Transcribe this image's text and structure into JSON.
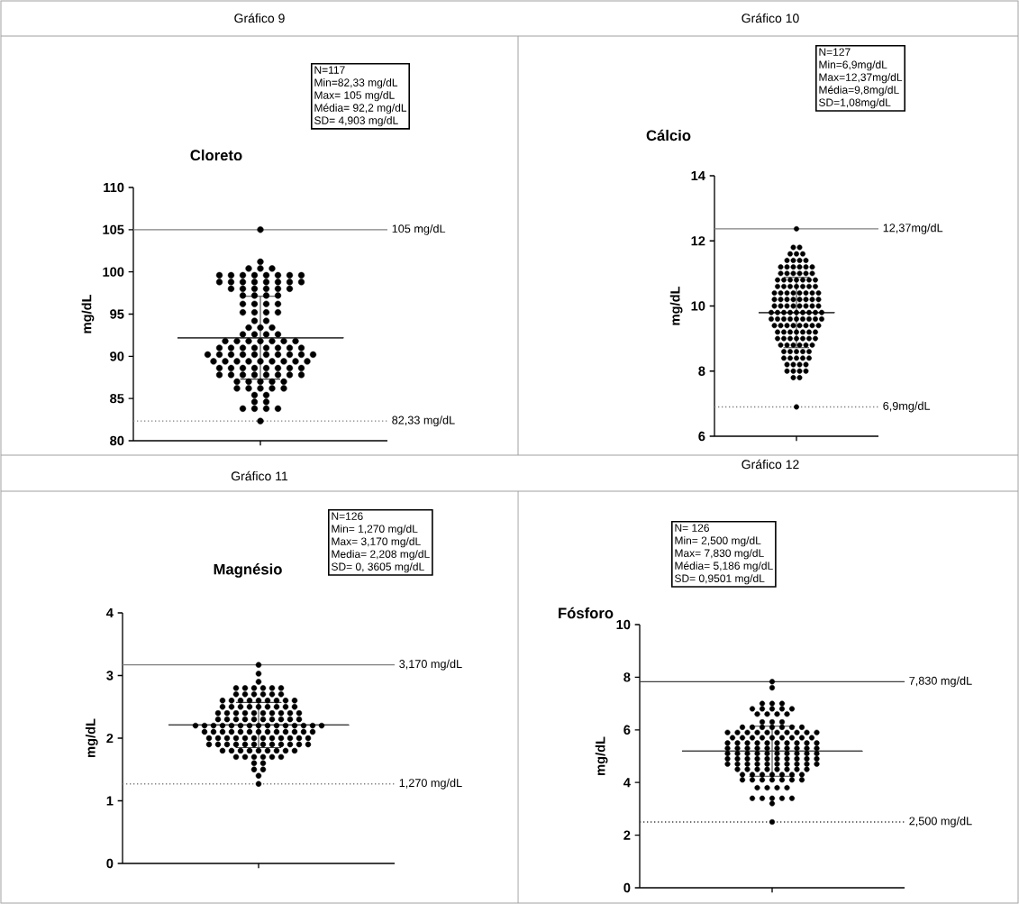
{
  "chart_data": [
    {
      "type": "scatter",
      "title": "Cloreto",
      "ylabel": "mg/dL",
      "categories": [
        null
      ],
      "ylim": [
        80,
        110
      ],
      "yticks": [
        80,
        85,
        90,
        95,
        100,
        105,
        110
      ],
      "tick_labels": "y",
      "marker": "circle",
      "series": [
        {
          "color": "#000000",
          "x": [
            null,
            null,
            null,
            null,
            null,
            null,
            null,
            null,
            null,
            null,
            null,
            null,
            null,
            null,
            null,
            null,
            null,
            null,
            null,
            null,
            null,
            null,
            null,
            null,
            null,
            null,
            null,
            null,
            null,
            null,
            null,
            null,
            null,
            null,
            null,
            null,
            null,
            null,
            null,
            null,
            null,
            null,
            null,
            null,
            null,
            null,
            null,
            null,
            null,
            null,
            null,
            null,
            null,
            null,
            null,
            null,
            null,
            null,
            null,
            null,
            null,
            null,
            null,
            null,
            null,
            null,
            null,
            null,
            null,
            null,
            null,
            null,
            null,
            null,
            null,
            null,
            null,
            null,
            null,
            null,
            null,
            null,
            null,
            null,
            null,
            null,
            null,
            null,
            null,
            null,
            null,
            null,
            null,
            null,
            null,
            null,
            null,
            null,
            null,
            null,
            null,
            null,
            null,
            null,
            null,
            null,
            null,
            null,
            null,
            null,
            null,
            null,
            null,
            null,
            null,
            null,
            null
          ],
          "values": [
            105,
            101.2,
            100.4,
            100.4,
            100.4,
            99.6,
            99.6,
            99.6,
            99.6,
            99.6,
            99.6,
            99.6,
            99.6,
            98.8,
            98.8,
            98.8,
            98.8,
            98.8,
            98.8,
            98.8,
            98.8,
            98,
            98,
            98,
            98,
            98,
            98,
            97.2,
            97.2,
            97.2,
            97.2,
            96.2,
            96.2,
            96.2,
            96.2,
            95.2,
            95.2,
            95.2,
            95.2,
            94.2,
            94.2,
            93.4,
            93.4,
            93.4,
            92.6,
            92.6,
            92.6,
            92.6,
            91.8,
            91.8,
            91.8,
            91.8,
            91.8,
            91.8,
            91.8,
            91,
            91,
            91,
            91,
            91,
            91,
            91,
            91,
            90.2,
            90.2,
            90.2,
            90.2,
            90.2,
            90.2,
            90.2,
            90.2,
            90.2,
            90.2,
            89.4,
            89.4,
            89.4,
            89.4,
            89.4,
            89.4,
            89.4,
            89.4,
            89.4,
            88.6,
            88.6,
            88.6,
            88.6,
            88.6,
            88.6,
            88.6,
            88.6,
            87.8,
            87.8,
            87.8,
            87.8,
            87.8,
            87.8,
            87.8,
            87.8,
            87,
            87,
            87,
            87,
            87,
            86.2,
            86.2,
            86.2,
            86.2,
            86.2,
            85.4,
            85.4,
            84.6,
            84.6,
            83.8,
            83.8,
            83.8,
            83.8,
            82.33
          ]
        },
        {
          "type": "box",
          "color": "#404040",
          "boxes": [
            {
              "low": 87.3,
              "q1": 92.2,
              "median": 92.2,
              "q3": 92.2,
              "high": 97.1
            }
          ]
        }
      ],
      "ref_lines": [
        {
          "axis": "y",
          "value": 105,
          "label": "105 mg/dL",
          "color": "#808080",
          "line_style": "solid"
        },
        {
          "axis": "y",
          "value": 82.33,
          "label": "82,33 mg/dL",
          "color": "#808080",
          "line_style": "dotted"
        }
      ],
      "annotations": [
        "Gráfico 9",
        "N=117",
        "Min=82,33 mg/dL",
        "Max= 105 mg/dL",
        "Média= 92,2 mg/dL",
        "SD= 4,903 mg/dL"
      ]
    },
    {
      "type": "scatter",
      "title": "Cálcio",
      "ylabel": "mg/dL",
      "categories": [
        null
      ],
      "ylim": [
        6,
        14
      ],
      "yticks": [
        6,
        8,
        10,
        12,
        14
      ],
      "tick_labels": "y",
      "marker": "circle",
      "series": [
        {
          "color": "#000000",
          "x": [
            null,
            null,
            null,
            null,
            null,
            null,
            null,
            null,
            null,
            null,
            null,
            null,
            null,
            null,
            null,
            null,
            null,
            null,
            null,
            null,
            null,
            null,
            null,
            null,
            null,
            null,
            null,
            null,
            null,
            null,
            null,
            null,
            null,
            null,
            null,
            null,
            null,
            null,
            null,
            null,
            null,
            null,
            null,
            null,
            null,
            null,
            null,
            null,
            null,
            null,
            null,
            null,
            null,
            null,
            null,
            null,
            null,
            null,
            null,
            null,
            null,
            null,
            null,
            null,
            null,
            null,
            null,
            null,
            null,
            null,
            null,
            null,
            null,
            null,
            null,
            null,
            null,
            null,
            null,
            null,
            null,
            null,
            null,
            null,
            null,
            null,
            null,
            null,
            null,
            null,
            null,
            null,
            null,
            null,
            null,
            null,
            null,
            null,
            null,
            null,
            null,
            null,
            null,
            null,
            null,
            null,
            null,
            null,
            null,
            null,
            null,
            null,
            null,
            null,
            null,
            null,
            null,
            null,
            null,
            null,
            null,
            null,
            null,
            null,
            null,
            null,
            null
          ],
          "values": [
            12.37,
            11.8,
            11.8,
            11.6,
            11.6,
            11.6,
            11.4,
            11.4,
            11.4,
            11.4,
            11.2,
            11.2,
            11.2,
            11.2,
            11.2,
            11.2,
            11,
            11,
            11,
            11,
            11,
            11,
            10.8,
            10.8,
            10.8,
            10.8,
            10.8,
            10.8,
            10.8,
            10.6,
            10.6,
            10.6,
            10.6,
            10.6,
            10.6,
            10.6,
            10.4,
            10.4,
            10.4,
            10.4,
            10.4,
            10.4,
            10.4,
            10.4,
            10.2,
            10.2,
            10.2,
            10.2,
            10.2,
            10.2,
            10.2,
            10.2,
            10,
            10,
            10,
            10,
            10,
            10,
            10,
            10,
            9.8,
            9.8,
            9.8,
            9.8,
            9.8,
            9.8,
            9.8,
            9.8,
            9.8,
            9.6,
            9.6,
            9.6,
            9.6,
            9.6,
            9.6,
            9.6,
            9.6,
            9.6,
            9.4,
            9.4,
            9.4,
            9.4,
            9.4,
            9.4,
            9.4,
            9.4,
            9.2,
            9.2,
            9.2,
            9.2,
            9.2,
            9.2,
            9.2,
            9,
            9,
            9,
            9,
            9,
            9,
            9,
            8.8,
            8.8,
            8.8,
            8.8,
            8.8,
            8.8,
            8.6,
            8.6,
            8.6,
            8.6,
            8.6,
            8.4,
            8.4,
            8.4,
            8.4,
            8.4,
            8.2,
            8.2,
            8.2,
            8.2,
            8,
            8,
            8,
            8,
            7.8,
            7.8,
            6.9
          ]
        },
        {
          "type": "box",
          "color": "#404040",
          "boxes": [
            {
              "low": 8.72,
              "q1": 9.8,
              "median": 9.8,
              "q3": 9.8,
              "high": 10.88
            }
          ]
        }
      ],
      "ref_lines": [
        {
          "axis": "y",
          "value": 12.37,
          "label": "12,37mg/dL",
          "color": "#808080",
          "line_style": "solid"
        },
        {
          "axis": "y",
          "value": 6.9,
          "label": "6,9mg/dL",
          "color": "#808080",
          "line_style": "dotted"
        }
      ],
      "annotations": [
        "Gráfico 10",
        "N=127",
        "Min=6,9mg/dL",
        "Max=12,37mg/dL",
        "Média=9,8mg/dL",
        "SD=1,08mg/dL"
      ]
    },
    {
      "type": "scatter",
      "title": "Magnésio",
      "ylabel": "mg/dL",
      "categories": [
        null
      ],
      "ylim": [
        0,
        4
      ],
      "yticks": [
        0,
        1,
        2,
        3,
        4
      ],
      "tick_labels": "y",
      "marker": "circle",
      "series": [
        {
          "color": "#000000",
          "x": [
            null,
            null,
            null,
            null,
            null,
            null,
            null,
            null,
            null,
            null,
            null,
            null,
            null,
            null,
            null,
            null,
            null,
            null,
            null,
            null,
            null,
            null,
            null,
            null,
            null,
            null,
            null,
            null,
            null,
            null,
            null,
            null,
            null,
            null,
            null,
            null,
            null,
            null,
            null,
            null,
            null,
            null,
            null,
            null,
            null,
            null,
            null,
            null,
            null,
            null,
            null,
            null,
            null,
            null,
            null,
            null,
            null,
            null,
            null,
            null,
            null,
            null,
            null,
            null,
            null,
            null,
            null,
            null,
            null,
            null,
            null,
            null,
            null,
            null,
            null,
            null,
            null,
            null,
            null,
            null,
            null,
            null,
            null,
            null,
            null,
            null,
            null,
            null,
            null,
            null,
            null,
            null,
            null,
            null,
            null,
            null,
            null,
            null,
            null,
            null,
            null,
            null,
            null,
            null,
            null,
            null,
            null,
            null,
            null,
            null,
            null,
            null,
            null,
            null,
            null,
            null,
            null,
            null,
            null,
            null,
            null,
            null,
            null,
            null,
            null,
            null
          ],
          "values": [
            3.17,
            3.03,
            2.9,
            2.8,
            2.8,
            2.8,
            2.8,
            2.8,
            2.8,
            2.7,
            2.7,
            2.7,
            2.7,
            2.7,
            2.7,
            2.6,
            2.6,
            2.6,
            2.6,
            2.6,
            2.6,
            2.6,
            2.6,
            2.6,
            2.5,
            2.5,
            2.5,
            2.5,
            2.5,
            2.5,
            2.5,
            2.5,
            2.5,
            2.4,
            2.4,
            2.4,
            2.4,
            2.4,
            2.4,
            2.4,
            2.4,
            2.4,
            2.4,
            2.3,
            2.3,
            2.3,
            2.3,
            2.3,
            2.3,
            2.3,
            2.3,
            2.3,
            2.3,
            2.2,
            2.2,
            2.2,
            2.2,
            2.2,
            2.2,
            2.2,
            2.2,
            2.2,
            2.2,
            2.2,
            2.2,
            2.2,
            2.2,
            2.2,
            2.1,
            2.1,
            2.1,
            2.1,
            2.1,
            2.1,
            2.1,
            2.1,
            2.1,
            2.1,
            2.1,
            2.1,
            2.1,
            2,
            2,
            2,
            2,
            2,
            2,
            2,
            2,
            2,
            2,
            2,
            2,
            1.9,
            1.9,
            1.9,
            1.9,
            1.9,
            1.9,
            1.9,
            1.9,
            1.9,
            1.9,
            1.9,
            1.9,
            1.8,
            1.8,
            1.8,
            1.8,
            1.8,
            1.8,
            1.8,
            1.8,
            1.8,
            1.7,
            1.7,
            1.7,
            1.7,
            1.7,
            1.7,
            1.6,
            1.6,
            1.5,
            1.5,
            1.4,
            1.27
          ]
        },
        {
          "type": "box",
          "color": "#404040",
          "boxes": [
            {
              "low": 1.85,
              "q1": 2.21,
              "median": 2.21,
              "q3": 2.21,
              "high": 2.57
            }
          ]
        }
      ],
      "ref_lines": [
        {
          "axis": "y",
          "value": 3.17,
          "label": "3,170 mg/dL",
          "color": "#808080",
          "line_style": "solid"
        },
        {
          "axis": "y",
          "value": 1.27,
          "label": "1,270 mg/dL",
          "color": "#808080",
          "line_style": "dotted"
        }
      ],
      "annotations": [
        "Gráfico 11",
        "N=126",
        "Min= 1,270 mg/dL",
        "Max= 3,170 mg/dL",
        "Media= 2,208 mg/dL",
        "SD= 0, 3605 mg/dL"
      ]
    },
    {
      "type": "scatter",
      "title": "Fósforo",
      "ylabel": "mg/dL",
      "categories": [
        null
      ],
      "ylim": [
        0,
        10
      ],
      "yticks": [
        0,
        2,
        4,
        6,
        8,
        10
      ],
      "tick_labels": "y",
      "marker": "circle",
      "series": [
        {
          "color": "#000000",
          "x": [
            null,
            null,
            null,
            null,
            null,
            null,
            null,
            null,
            null,
            null,
            null,
            null,
            null,
            null,
            null,
            null,
            null,
            null,
            null,
            null,
            null,
            null,
            null,
            null,
            null,
            null,
            null,
            null,
            null,
            null,
            null,
            null,
            null,
            null,
            null,
            null,
            null,
            null,
            null,
            null,
            null,
            null,
            null,
            null,
            null,
            null,
            null,
            null,
            null,
            null,
            null,
            null,
            null,
            null,
            null,
            null,
            null,
            null,
            null,
            null,
            null,
            null,
            null,
            null,
            null,
            null,
            null,
            null,
            null,
            null,
            null,
            null,
            null,
            null,
            null,
            null,
            null,
            null,
            null,
            null,
            null,
            null,
            null,
            null,
            null,
            null,
            null,
            null,
            null,
            null,
            null,
            null,
            null,
            null,
            null,
            null,
            null,
            null,
            null,
            null,
            null,
            null,
            null,
            null,
            null,
            null,
            null,
            null,
            null,
            null,
            null,
            null,
            null,
            null,
            null,
            null,
            null,
            null,
            null,
            null,
            null,
            null,
            null,
            null,
            null,
            null
          ],
          "values": [
            7.83,
            7.6,
            7,
            7,
            7,
            6.8,
            6.8,
            6.8,
            6.8,
            6.8,
            6.6,
            6.6,
            6.6,
            6.6,
            6.3,
            6.3,
            6.3,
            6.1,
            6.1,
            6.1,
            6.1,
            6.1,
            6.1,
            6.1,
            5.9,
            5.9,
            5.9,
            5.9,
            5.9,
            5.9,
            5.9,
            5.9,
            5.9,
            5.9,
            5.7,
            5.7,
            5.7,
            5.7,
            5.7,
            5.7,
            5.7,
            5.7,
            5.7,
            5.5,
            5.5,
            5.5,
            5.5,
            5.5,
            5.5,
            5.5,
            5.5,
            5.5,
            5.5,
            5.3,
            5.3,
            5.3,
            5.3,
            5.3,
            5.3,
            5.3,
            5.3,
            5.3,
            5.3,
            5.1,
            5.1,
            5.1,
            5.1,
            5.1,
            5.1,
            5.1,
            5.1,
            5.1,
            5.1,
            4.9,
            4.9,
            4.9,
            4.9,
            4.9,
            4.9,
            4.9,
            4.9,
            4.9,
            4.9,
            4.7,
            4.7,
            4.7,
            4.7,
            4.7,
            4.7,
            4.7,
            4.7,
            4.7,
            4.7,
            4.5,
            4.5,
            4.5,
            4.5,
            4.5,
            4.5,
            4.5,
            4.5,
            4.3,
            4.3,
            4.3,
            4.3,
            4.3,
            4.3,
            4.3,
            4.1,
            4.1,
            4.1,
            4.1,
            4.1,
            4.1,
            4.1,
            3.8,
            3.8,
            3.8,
            3.8,
            3.4,
            3.4,
            3.4,
            3.4,
            3.4,
            3.2,
            2.5
          ]
        },
        {
          "type": "box",
          "color": "#404040",
          "boxes": [
            {
              "low": 4.24,
              "q1": 5.19,
              "median": 5.19,
              "q3": 5.19,
              "high": 6.14
            }
          ]
        }
      ],
      "ref_lines": [
        {
          "axis": "y",
          "value": 7.83,
          "label": "7,830 mg/dL",
          "color": "#404040",
          "line_style": "solid"
        },
        {
          "axis": "y",
          "value": 2.5,
          "label": "2,500 mg/dL",
          "color": "#404040",
          "line_style": "dotted"
        }
      ],
      "annotations": [
        "Gráfico 12",
        "N= 126",
        "Min= 2,500 mg/dL",
        "Max= 7,830 mg/dL",
        "Média= 5,186 mg/dL",
        "SD= 0,9501 mg/dL"
      ]
    }
  ]
}
